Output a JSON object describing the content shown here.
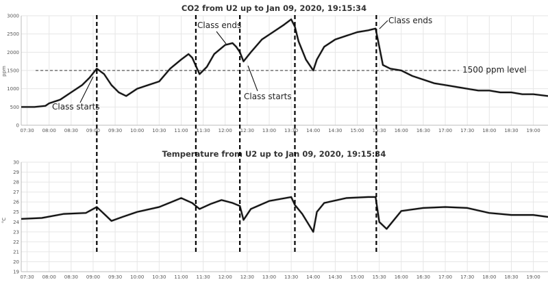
{
  "chart_data": [
    {
      "type": "line",
      "title": "CO2 from U2 up to Jan 09, 2020, 19:15:34",
      "ylabel": "ppm",
      "ylim": [
        0,
        3000
      ],
      "yticks": [
        "0",
        "500",
        "1000",
        "1500",
        "2000",
        "2500",
        "3000"
      ],
      "xlim": [
        "07:22",
        "19:20"
      ],
      "xticks": [
        "07:30",
        "08:00",
        "08:30",
        "09:00",
        "09:30",
        "10:00",
        "10:30",
        "11:00",
        "11:30",
        "12:00",
        "12:30",
        "13:00",
        "13:30",
        "14:00",
        "14:30",
        "15:00",
        "15:30",
        "16:00",
        "16:30",
        "17:00",
        "17:30",
        "18:00",
        "18:30",
        "19:00"
      ],
      "grid": true,
      "series": [
        {
          "x": [
            "07:22",
            "07:40",
            "07:55",
            "08:00",
            "08:15",
            "08:30",
            "08:45",
            "08:55",
            "09:05",
            "09:15",
            "09:25",
            "09:35",
            "09:45",
            "10:00",
            "10:15",
            "10:30",
            "10:45",
            "11:00",
            "11:10",
            "11:15",
            "11:25",
            "11:35",
            "11:45",
            "12:00",
            "12:10",
            "12:15",
            "12:20",
            "12:25",
            "12:35",
            "12:50",
            "13:05",
            "13:20",
            "13:30",
            "13:35",
            "13:40",
            "13:50",
            "14:00",
            "14:05",
            "14:15",
            "14:30",
            "14:45",
            "15:00",
            "15:15",
            "15:25",
            "15:30",
            "15:35",
            "15:45",
            "16:00",
            "16:15",
            "16:30",
            "16:45",
            "17:00",
            "17:15",
            "17:30",
            "17:45",
            "18:00",
            "18:15",
            "18:30",
            "18:45",
            "19:00",
            "19:20"
          ],
          "y": [
            500,
            500,
            530,
            600,
            700,
            900,
            1100,
            1300,
            1550,
            1400,
            1100,
            900,
            800,
            1000,
            1100,
            1200,
            1550,
            1800,
            1950,
            1850,
            1400,
            1600,
            1950,
            2200,
            2250,
            2150,
            2000,
            1750,
            2000,
            2350,
            2550,
            2750,
            2900,
            2700,
            2300,
            1800,
            1500,
            1800,
            2150,
            2350,
            2450,
            2550,
            2600,
            2650,
            2150,
            1650,
            1550,
            1500,
            1350,
            1250,
            1150,
            1100,
            1050,
            1000,
            950,
            950,
            900,
            900,
            850,
            850,
            800
          ]
        }
      ],
      "reference_line": {
        "value": 1500,
        "label": "1500 ppm level"
      },
      "annotations": [
        "Class starts",
        "Class ends",
        "Class starts",
        "Class ends"
      ]
    },
    {
      "type": "line",
      "title": "Temperature from U2 up to Jan 09, 2020, 19:15:34",
      "ylabel": "°C",
      "ylim": [
        19,
        30
      ],
      "yticks": [
        "19",
        "20",
        "21",
        "22",
        "23",
        "24",
        "25",
        "26",
        "27",
        "28",
        "29",
        "30"
      ],
      "xlim": [
        "07:22",
        "19:20"
      ],
      "xticks": [
        "07:30",
        "08:00",
        "08:30",
        "09:00",
        "09:30",
        "10:00",
        "10:30",
        "11:00",
        "11:30",
        "12:00",
        "12:30",
        "13:00",
        "13:30",
        "14:00",
        "14:30",
        "15:00",
        "15:30",
        "16:00",
        "16:30",
        "17:00",
        "17:30",
        "18:00",
        "18:30",
        "19:00"
      ],
      "grid": true,
      "series": [
        {
          "x": [
            "07:22",
            "07:50",
            "08:20",
            "08:50",
            "09:05",
            "09:15",
            "09:25",
            "09:40",
            "10:00",
            "10:30",
            "11:00",
            "11:15",
            "11:25",
            "11:40",
            "11:55",
            "12:10",
            "12:20",
            "12:25",
            "12:35",
            "13:00",
            "13:30",
            "13:35",
            "13:45",
            "14:00",
            "14:05",
            "14:15",
            "14:45",
            "15:15",
            "15:25",
            "15:30",
            "15:40",
            "16:00",
            "16:30",
            "17:00",
            "17:30",
            "18:00",
            "18:30",
            "19:00",
            "19:20"
          ],
          "y": [
            24.3,
            24.4,
            24.8,
            24.9,
            25.5,
            24.8,
            24.1,
            24.5,
            25.0,
            25.5,
            26.4,
            25.9,
            25.3,
            25.8,
            26.2,
            25.9,
            25.6,
            24.2,
            25.3,
            26.1,
            26.5,
            25.7,
            24.8,
            23.0,
            25.0,
            25.9,
            26.4,
            26.5,
            26.5,
            24.0,
            23.3,
            25.1,
            25.4,
            25.5,
            25.4,
            24.9,
            24.7,
            24.7,
            24.5
          ]
        }
      ]
    }
  ],
  "markers": [
    {
      "time": "09:05"
    },
    {
      "time": "11:20"
    },
    {
      "time": "12:20"
    },
    {
      "time": "13:35"
    },
    {
      "time": "15:26"
    }
  ]
}
